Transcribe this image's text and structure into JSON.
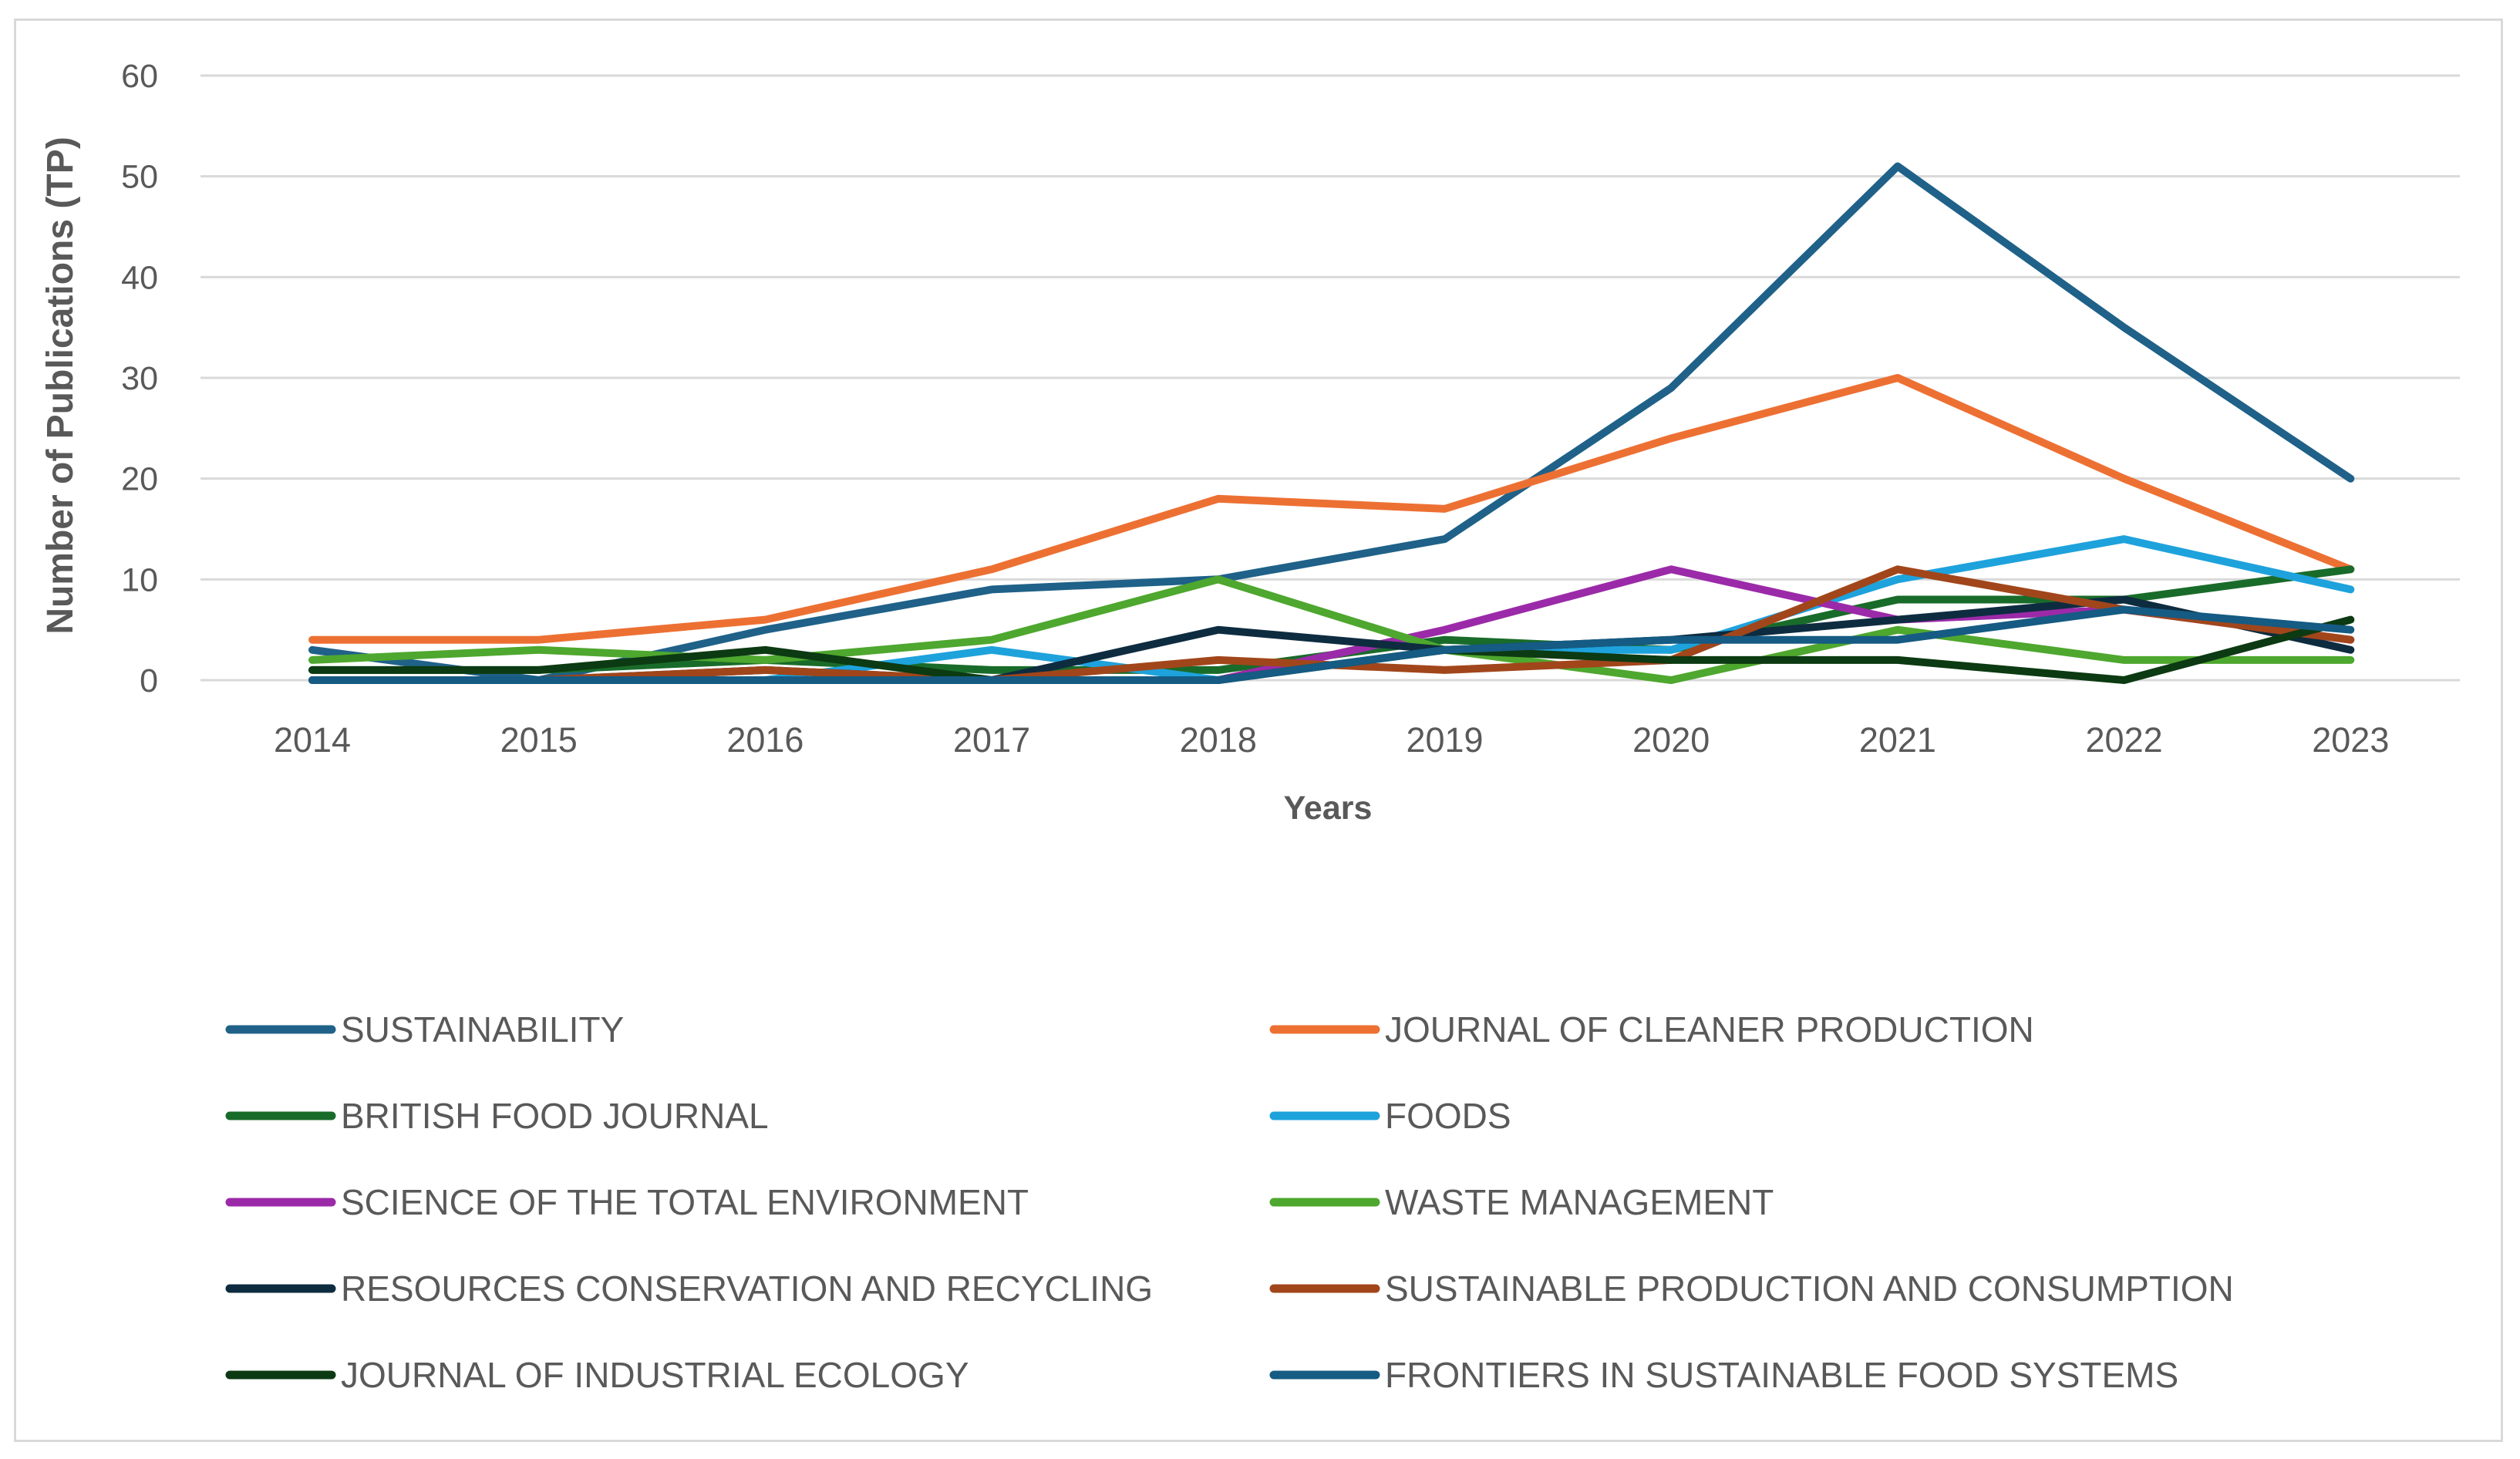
{
  "chart_data": {
    "type": "line",
    "title": "",
    "xlabel": "Years",
    "ylabel": "Number of Publications (TP)",
    "ylim": [
      0,
      60
    ],
    "yticks": [
      "0",
      "10",
      "20",
      "30",
      "40",
      "50",
      "60"
    ],
    "categories": [
      "2014",
      "2015",
      "2016",
      "2017",
      "2018",
      "2019",
      "2020",
      "2021",
      "2022",
      "2023"
    ],
    "grid": true,
    "legend_position": "bottom",
    "series": [
      {
        "name": "SUSTAINABILITY",
        "color": "#1f6188",
        "values": [
          3,
          0,
          5,
          9,
          10,
          14,
          29,
          51,
          35,
          20
        ]
      },
      {
        "name": "JOURNAL OF CLEANER PRODUCTION",
        "color": "#ed7033",
        "values": [
          4,
          4,
          6,
          11,
          18,
          17,
          24,
          30,
          20,
          11
        ]
      },
      {
        "name": "BRITISH FOOD JOURNAL",
        "color": "#196b2a",
        "values": [
          1,
          1,
          2,
          1,
          1,
          4,
          3,
          8,
          8,
          11
        ]
      },
      {
        "name": "FOODS",
        "color": "#1ea2dc",
        "values": [
          0,
          0,
          0,
          3,
          0,
          3,
          3,
          10,
          14,
          9
        ]
      },
      {
        "name": "SCIENCE OF THE TOTAL ENVIRONMENT",
        "color": "#9b2aa8",
        "values": [
          0,
          0,
          0,
          0,
          0,
          5,
          11,
          6,
          7,
          4
        ]
      },
      {
        "name": "WASTE MANAGEMENT",
        "color": "#4ea72e",
        "values": [
          2,
          3,
          2,
          4,
          10,
          3,
          0,
          5,
          2,
          2
        ]
      },
      {
        "name": "RESOURCES CONSERVATION AND RECYCLING",
        "color": "#0e2c40",
        "values": [
          0,
          0,
          1,
          0,
          5,
          3,
          4,
          6,
          8,
          3
        ]
      },
      {
        "name": "SUSTAINABLE PRODUCTION AND CONSUMPTION",
        "color": "#a1461b",
        "values": [
          0,
          0,
          1,
          0,
          2,
          1,
          2,
          11,
          7,
          4
        ]
      },
      {
        "name": "JOURNAL OF INDUSTRIAL ECOLOGY",
        "color": "#0c3a12",
        "values": [
          1,
          1,
          3,
          0,
          0,
          3,
          2,
          2,
          0,
          6
        ]
      },
      {
        "name": "FRONTIERS IN SUSTAINABLE FOOD SYSTEMS",
        "color": "#155b83",
        "values": [
          0,
          0,
          0,
          0,
          0,
          3,
          4,
          4,
          7,
          5
        ]
      }
    ]
  }
}
